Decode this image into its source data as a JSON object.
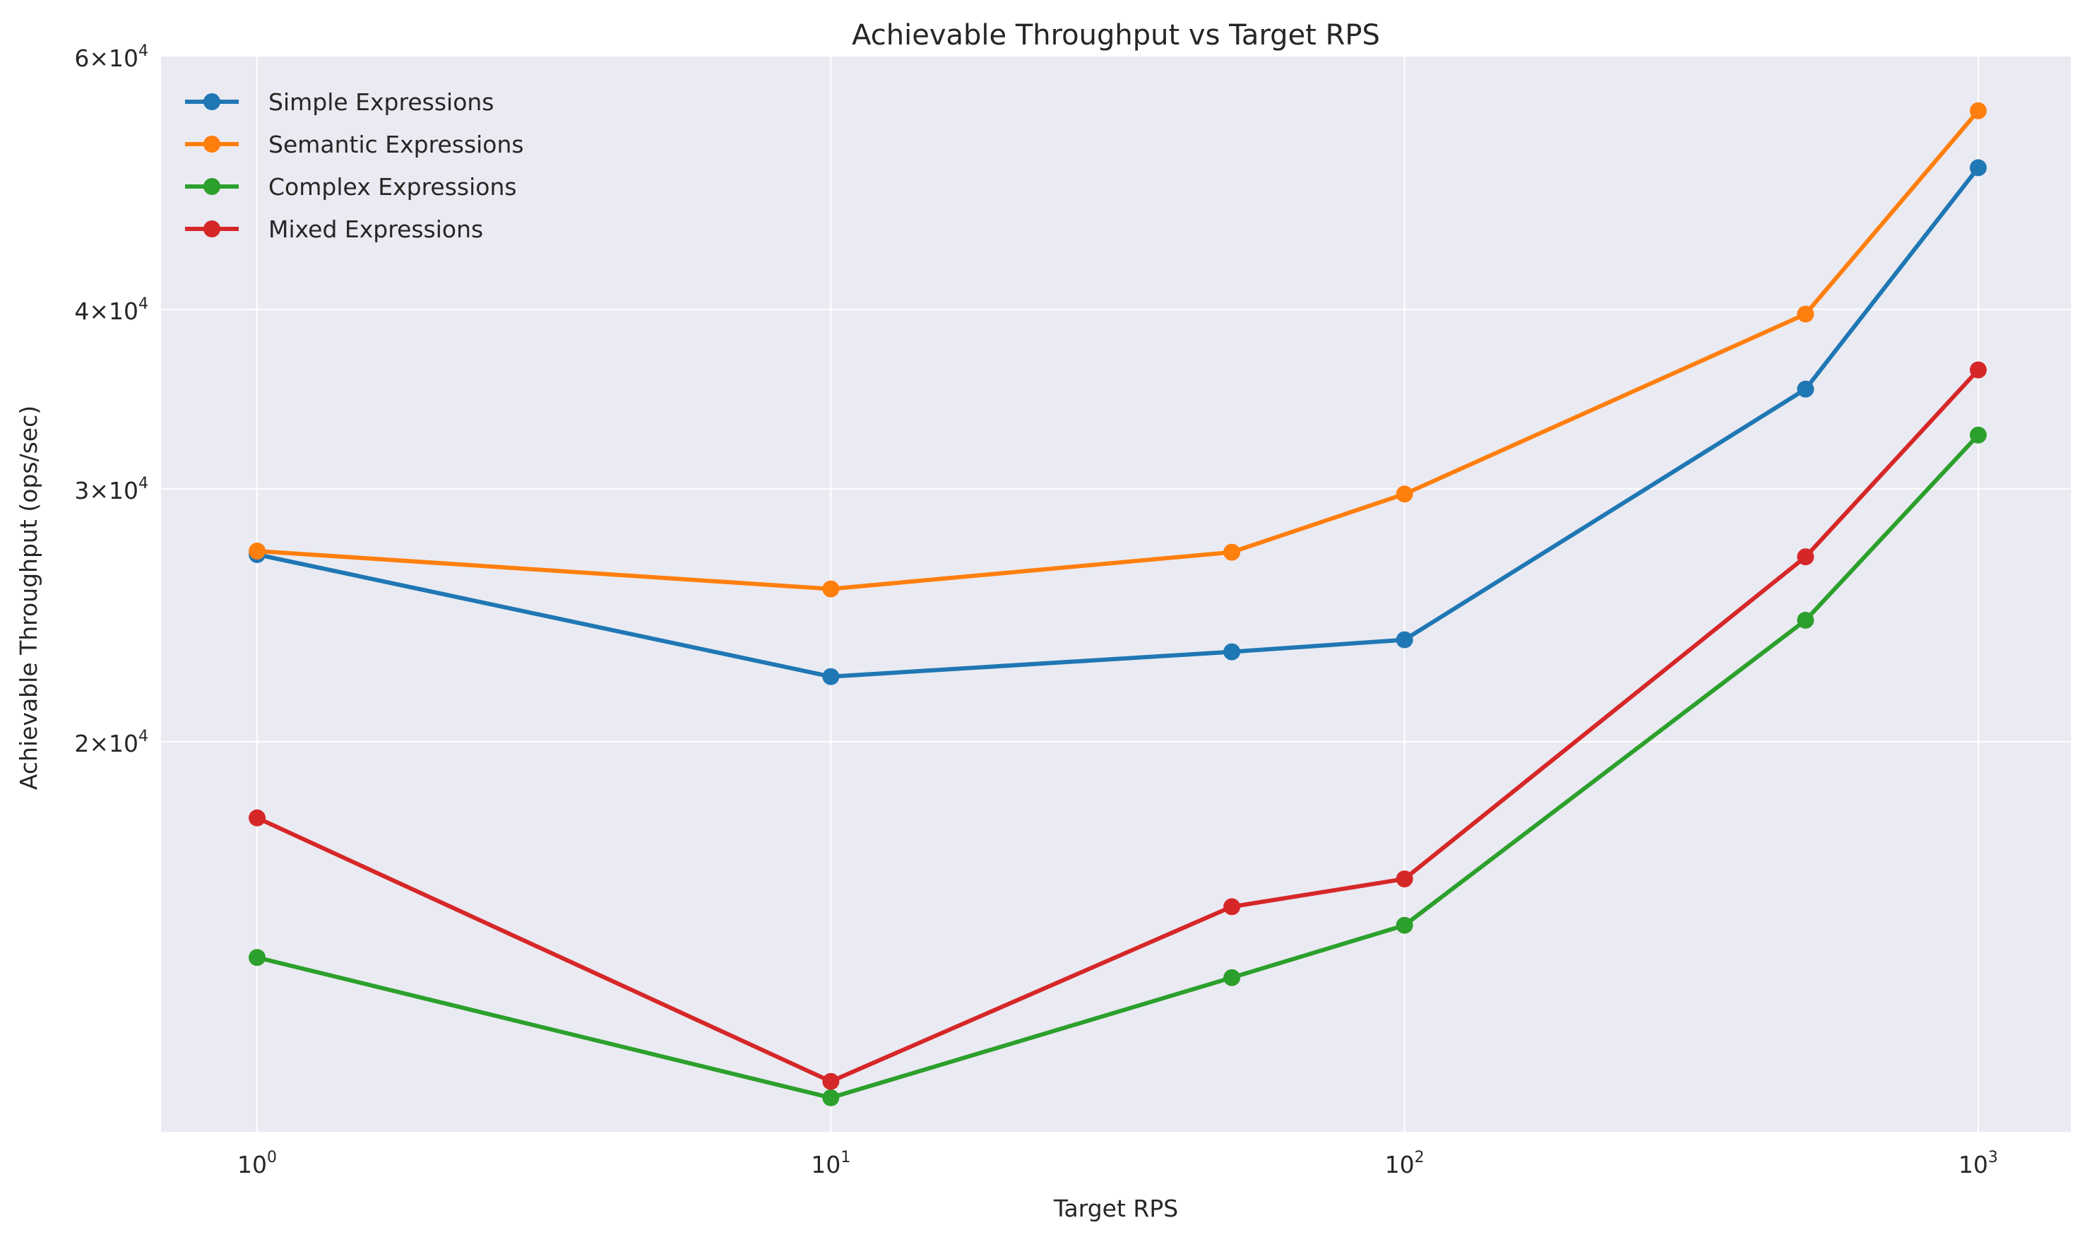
{
  "chart_data": {
    "type": "line",
    "title": "Achievable Throughput vs Target RPS",
    "xlabel": "Target RPS",
    "ylabel": "Achievable Throughput (ops/sec)",
    "x_scale": "log",
    "y_scale": "log",
    "xlim": [
      0.68,
      1450
    ],
    "ylim": [
      10700,
      60000
    ],
    "x_ticks": [
      {
        "value": 1,
        "base": "10",
        "exp": "0"
      },
      {
        "value": 10,
        "base": "10",
        "exp": "1"
      },
      {
        "value": 100,
        "base": "10",
        "exp": "2"
      },
      {
        "value": 1000,
        "base": "10",
        "exp": "3"
      }
    ],
    "y_ticks": [
      {
        "value": 20000,
        "mant": "2",
        "base": "10",
        "exp": "4"
      },
      {
        "value": 30000,
        "mant": "3",
        "base": "10",
        "exp": "4"
      },
      {
        "value": 40000,
        "mant": "4",
        "base": "10",
        "exp": "4"
      },
      {
        "value": 60000,
        "mant": "6",
        "base": "10",
        "exp": "4"
      }
    ],
    "grid": true,
    "legend": "top-left",
    "x": [
      1,
      10,
      50,
      100,
      500,
      1000
    ],
    "series": [
      {
        "name": "Simple Expressions",
        "color": "#1f77b4",
        "values": [
          27000,
          22200,
          23100,
          23550,
          35200,
          50200
        ]
      },
      {
        "name": "Semantic Expressions",
        "color": "#ff7f0e",
        "values": [
          27150,
          25550,
          27100,
          29750,
          39700,
          55000
        ]
      },
      {
        "name": "Complex Expressions",
        "color": "#2ca02c",
        "values": [
          14150,
          11300,
          13700,
          14900,
          24300,
          32700
        ]
      },
      {
        "name": "Mixed Expressions",
        "color": "#d62728",
        "values": [
          17700,
          11600,
          15350,
          16050,
          26900,
          36300
        ]
      }
    ]
  }
}
